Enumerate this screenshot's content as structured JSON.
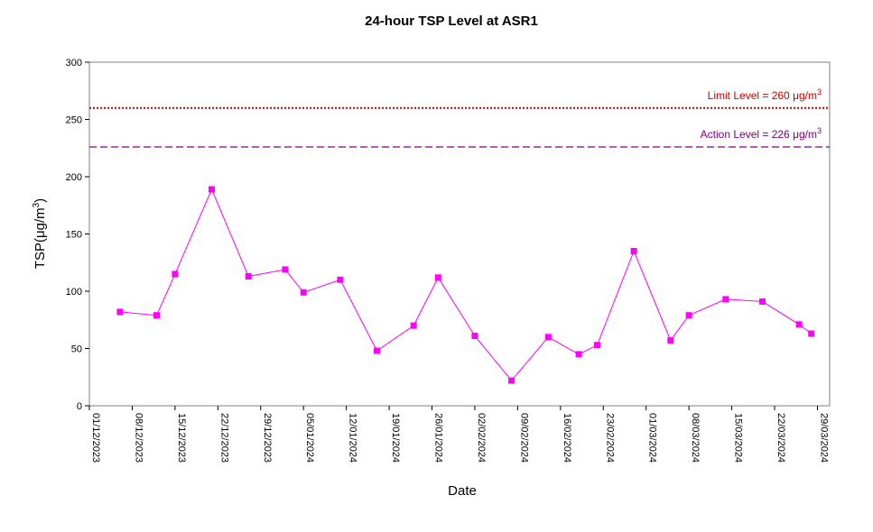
{
  "chart_data": {
    "type": "line",
    "title": "24-hour TSP Level at ASR1",
    "xlabel": "Date",
    "ylabel_main": "TSP(μg/m",
    "ylabel_sup": "3",
    "ylabel_tail": ")",
    "ylim": [
      0,
      300
    ],
    "yticks": [
      0,
      50,
      100,
      150,
      200,
      250,
      300
    ],
    "xlim": [
      "2023-12-01",
      "2024-03-31"
    ],
    "xticks": [
      "01/12/2023",
      "08/12/2023",
      "15/12/2023",
      "22/12/2023",
      "29/12/2023",
      "05/01/2024",
      "12/01/2024",
      "19/01/2024",
      "26/01/2024",
      "02/02/2024",
      "09/02/2024",
      "16/02/2024",
      "23/02/2024",
      "01/03/2024",
      "08/03/2024",
      "15/03/2024",
      "22/03/2024",
      "29/03/2024"
    ],
    "grid": false,
    "series": [
      {
        "color": "#ff00ff",
        "x": [
          "2023-12-06",
          "2023-12-12",
          "2023-12-15",
          "2023-12-21",
          "2023-12-27",
          "2024-01-02",
          "2024-01-05",
          "2024-01-11",
          "2024-01-17",
          "2024-01-23",
          "2024-01-27",
          "2024-02-02",
          "2024-02-08",
          "2024-02-14",
          "2024-02-19",
          "2024-02-22",
          "2024-02-28",
          "2024-03-05",
          "2024-03-08",
          "2024-03-14",
          "2024-03-20",
          "2024-03-26",
          "2024-03-28"
        ],
        "values": [
          82,
          79,
          115,
          189,
          113,
          119,
          99,
          110,
          48,
          70,
          112,
          61,
          22,
          60,
          45,
          53,
          135,
          57,
          79,
          93,
          91,
          71,
          63
        ]
      }
    ],
    "reference_lines": [
      {
        "label": "Limit Level  = 260 ",
        "unit_main": "μg/m",
        "unit_sup": "3",
        "value": 260,
        "color": "#cc0000",
        "style": "dotted"
      },
      {
        "label": "Action Level  = 226 ",
        "unit_main": "μg/m",
        "unit_sup": "3",
        "value": 226,
        "color": "#800080",
        "style": "dashed"
      }
    ]
  }
}
